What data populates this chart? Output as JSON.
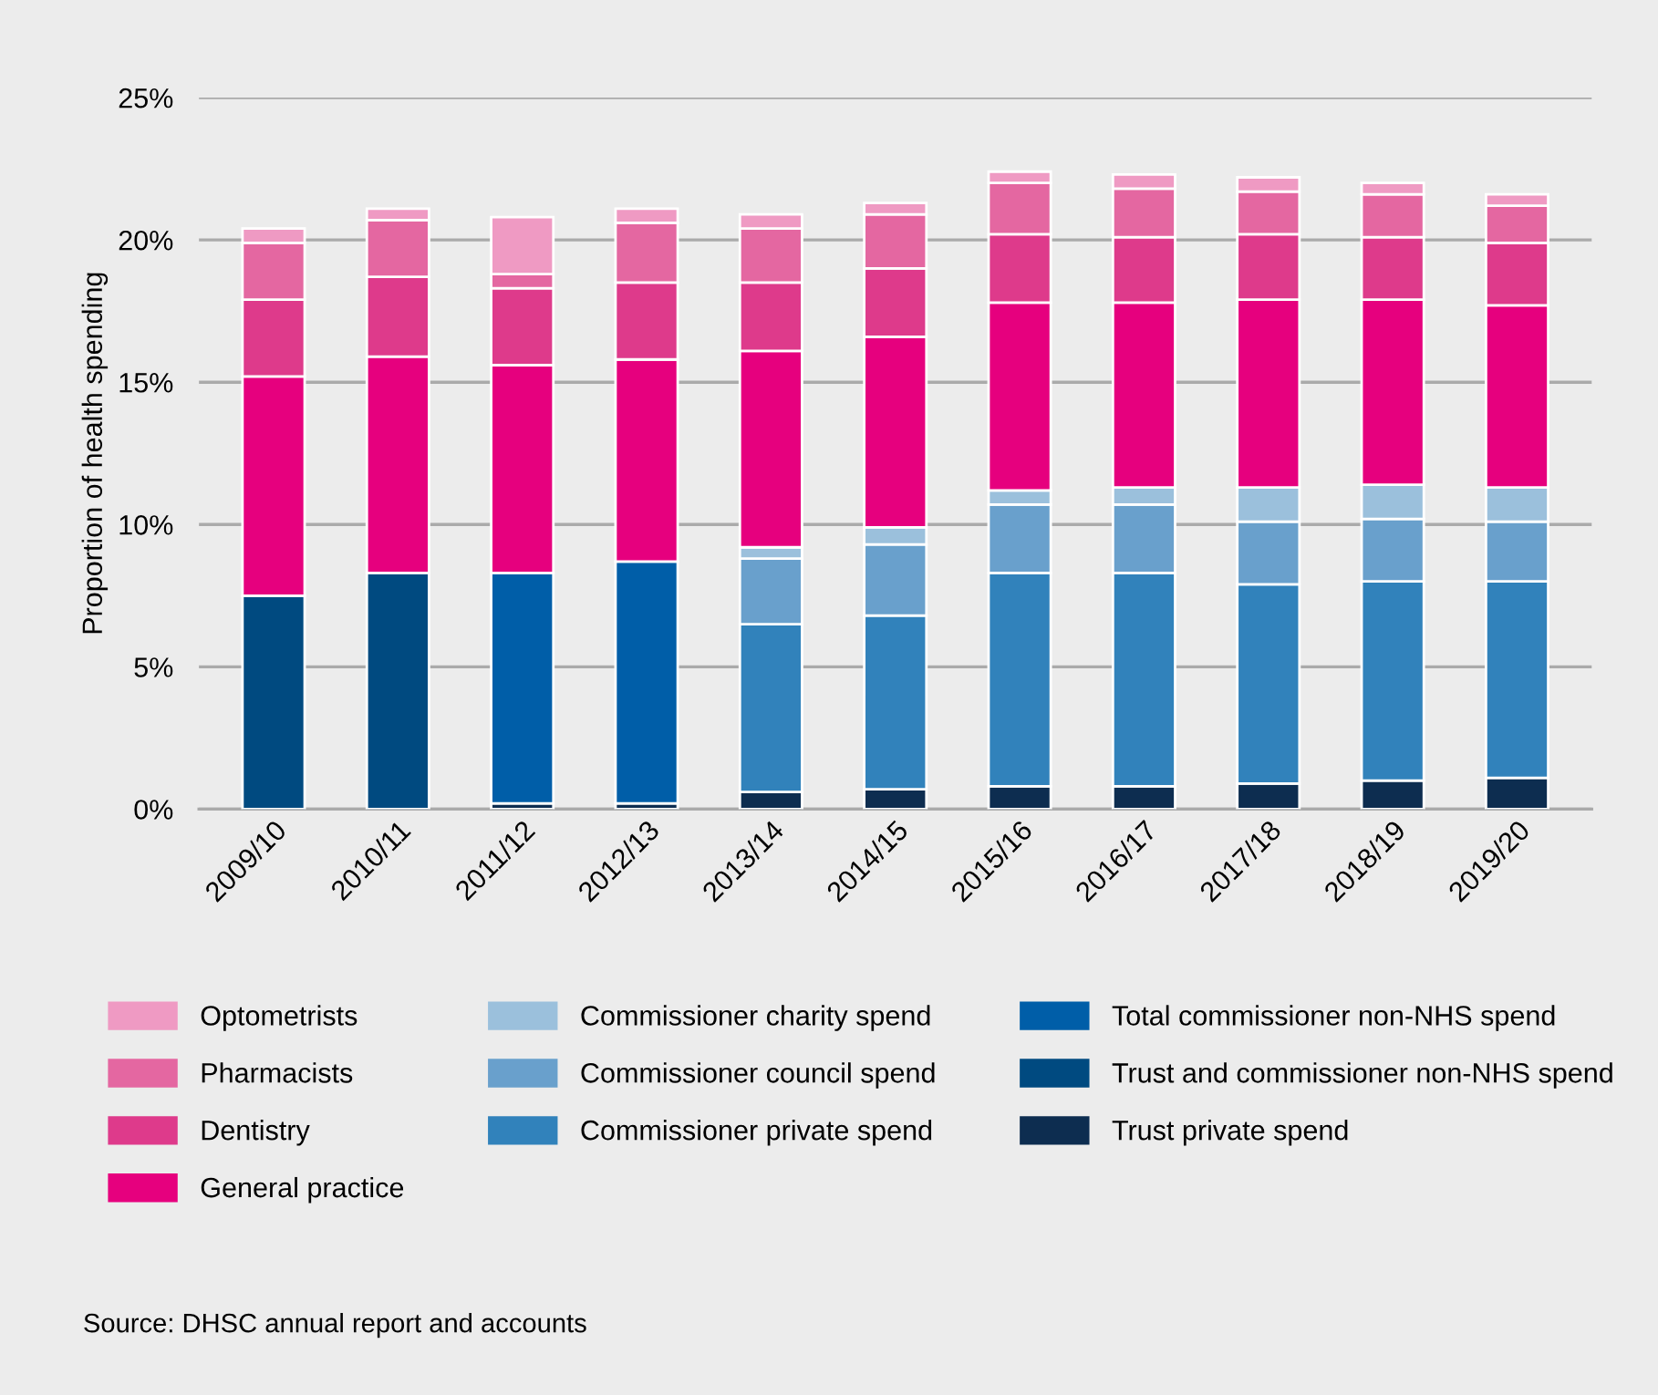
{
  "chart_data": {
    "type": "bar",
    "stacked": true,
    "ylabel": "Proportion of health spending",
    "categories": [
      "2009/10",
      "2010/11",
      "2011/12",
      "2012/13",
      "2013/14",
      "2014/15",
      "2015/16",
      "2016/17",
      "2017/18",
      "2018/19",
      "2019/20"
    ],
    "series": [
      {
        "name": "Trust private spend",
        "color": "#0d2d50",
        "values": [
          null,
          null,
          0.2,
          0.2,
          0.6,
          0.7,
          0.8,
          0.8,
          0.9,
          1.0,
          1.1
        ]
      },
      {
        "name": "Trust and commissioner non-NHS spend",
        "color": "#004a80",
        "values": [
          7.5,
          8.3,
          null,
          null,
          null,
          null,
          null,
          null,
          null,
          null,
          null
        ]
      },
      {
        "name": "Total commissioner non-NHS spend",
        "color": "#005ea8",
        "values": [
          null,
          null,
          8.1,
          8.5,
          null,
          null,
          null,
          null,
          null,
          null,
          null
        ]
      },
      {
        "name": "Commissioner private spend",
        "color": "#3182bb",
        "values": [
          null,
          null,
          null,
          null,
          5.9,
          6.1,
          7.5,
          7.5,
          7.0,
          7.0,
          6.9
        ]
      },
      {
        "name": "Commissioner council spend",
        "color": "#69a0cc",
        "values": [
          null,
          null,
          null,
          null,
          2.3,
          2.5,
          2.4,
          2.4,
          2.2,
          2.2,
          2.1
        ]
      },
      {
        "name": "Commissioner charity spend",
        "color": "#9bc0dc",
        "values": [
          null,
          null,
          null,
          null,
          0.4,
          0.6,
          0.5,
          0.6,
          1.2,
          1.2,
          1.2
        ]
      },
      {
        "name": "General practice",
        "color": "#e6007e",
        "values": [
          7.7,
          7.6,
          7.3,
          7.1,
          6.9,
          6.7,
          6.6,
          6.5,
          6.6,
          6.5,
          6.4
        ]
      },
      {
        "name": "Dentistry",
        "color": "#de3a8b",
        "values": [
          2.7,
          2.8,
          2.7,
          2.7,
          2.4,
          2.4,
          2.4,
          2.3,
          2.3,
          2.2,
          2.2
        ]
      },
      {
        "name": "Pharmacists",
        "color": "#e467a1",
        "values": [
          2.0,
          2.0,
          0.5,
          2.1,
          1.9,
          1.9,
          1.8,
          1.7,
          1.5,
          1.5,
          1.3
        ]
      },
      {
        "name": "Optometrists",
        "color": "#ef9ac3",
        "values": [
          0.5,
          0.4,
          2.0,
          0.5,
          0.5,
          0.4,
          0.4,
          0.5,
          0.5,
          0.4,
          0.4
        ]
      }
    ],
    "ylim": [
      0,
      25
    ],
    "yticks": [
      {
        "value": 0,
        "label": "0%"
      },
      {
        "value": 5,
        "label": "5%"
      },
      {
        "value": 10,
        "label": "10%"
      },
      {
        "value": 15,
        "label": "15%"
      },
      {
        "value": 20,
        "label": "20%"
      },
      {
        "value": 25,
        "label": "25%"
      }
    ],
    "grid": "y",
    "legend": "bottom",
    "annotations": [
      "Source: DHSC annual report and accounts"
    ]
  }
}
